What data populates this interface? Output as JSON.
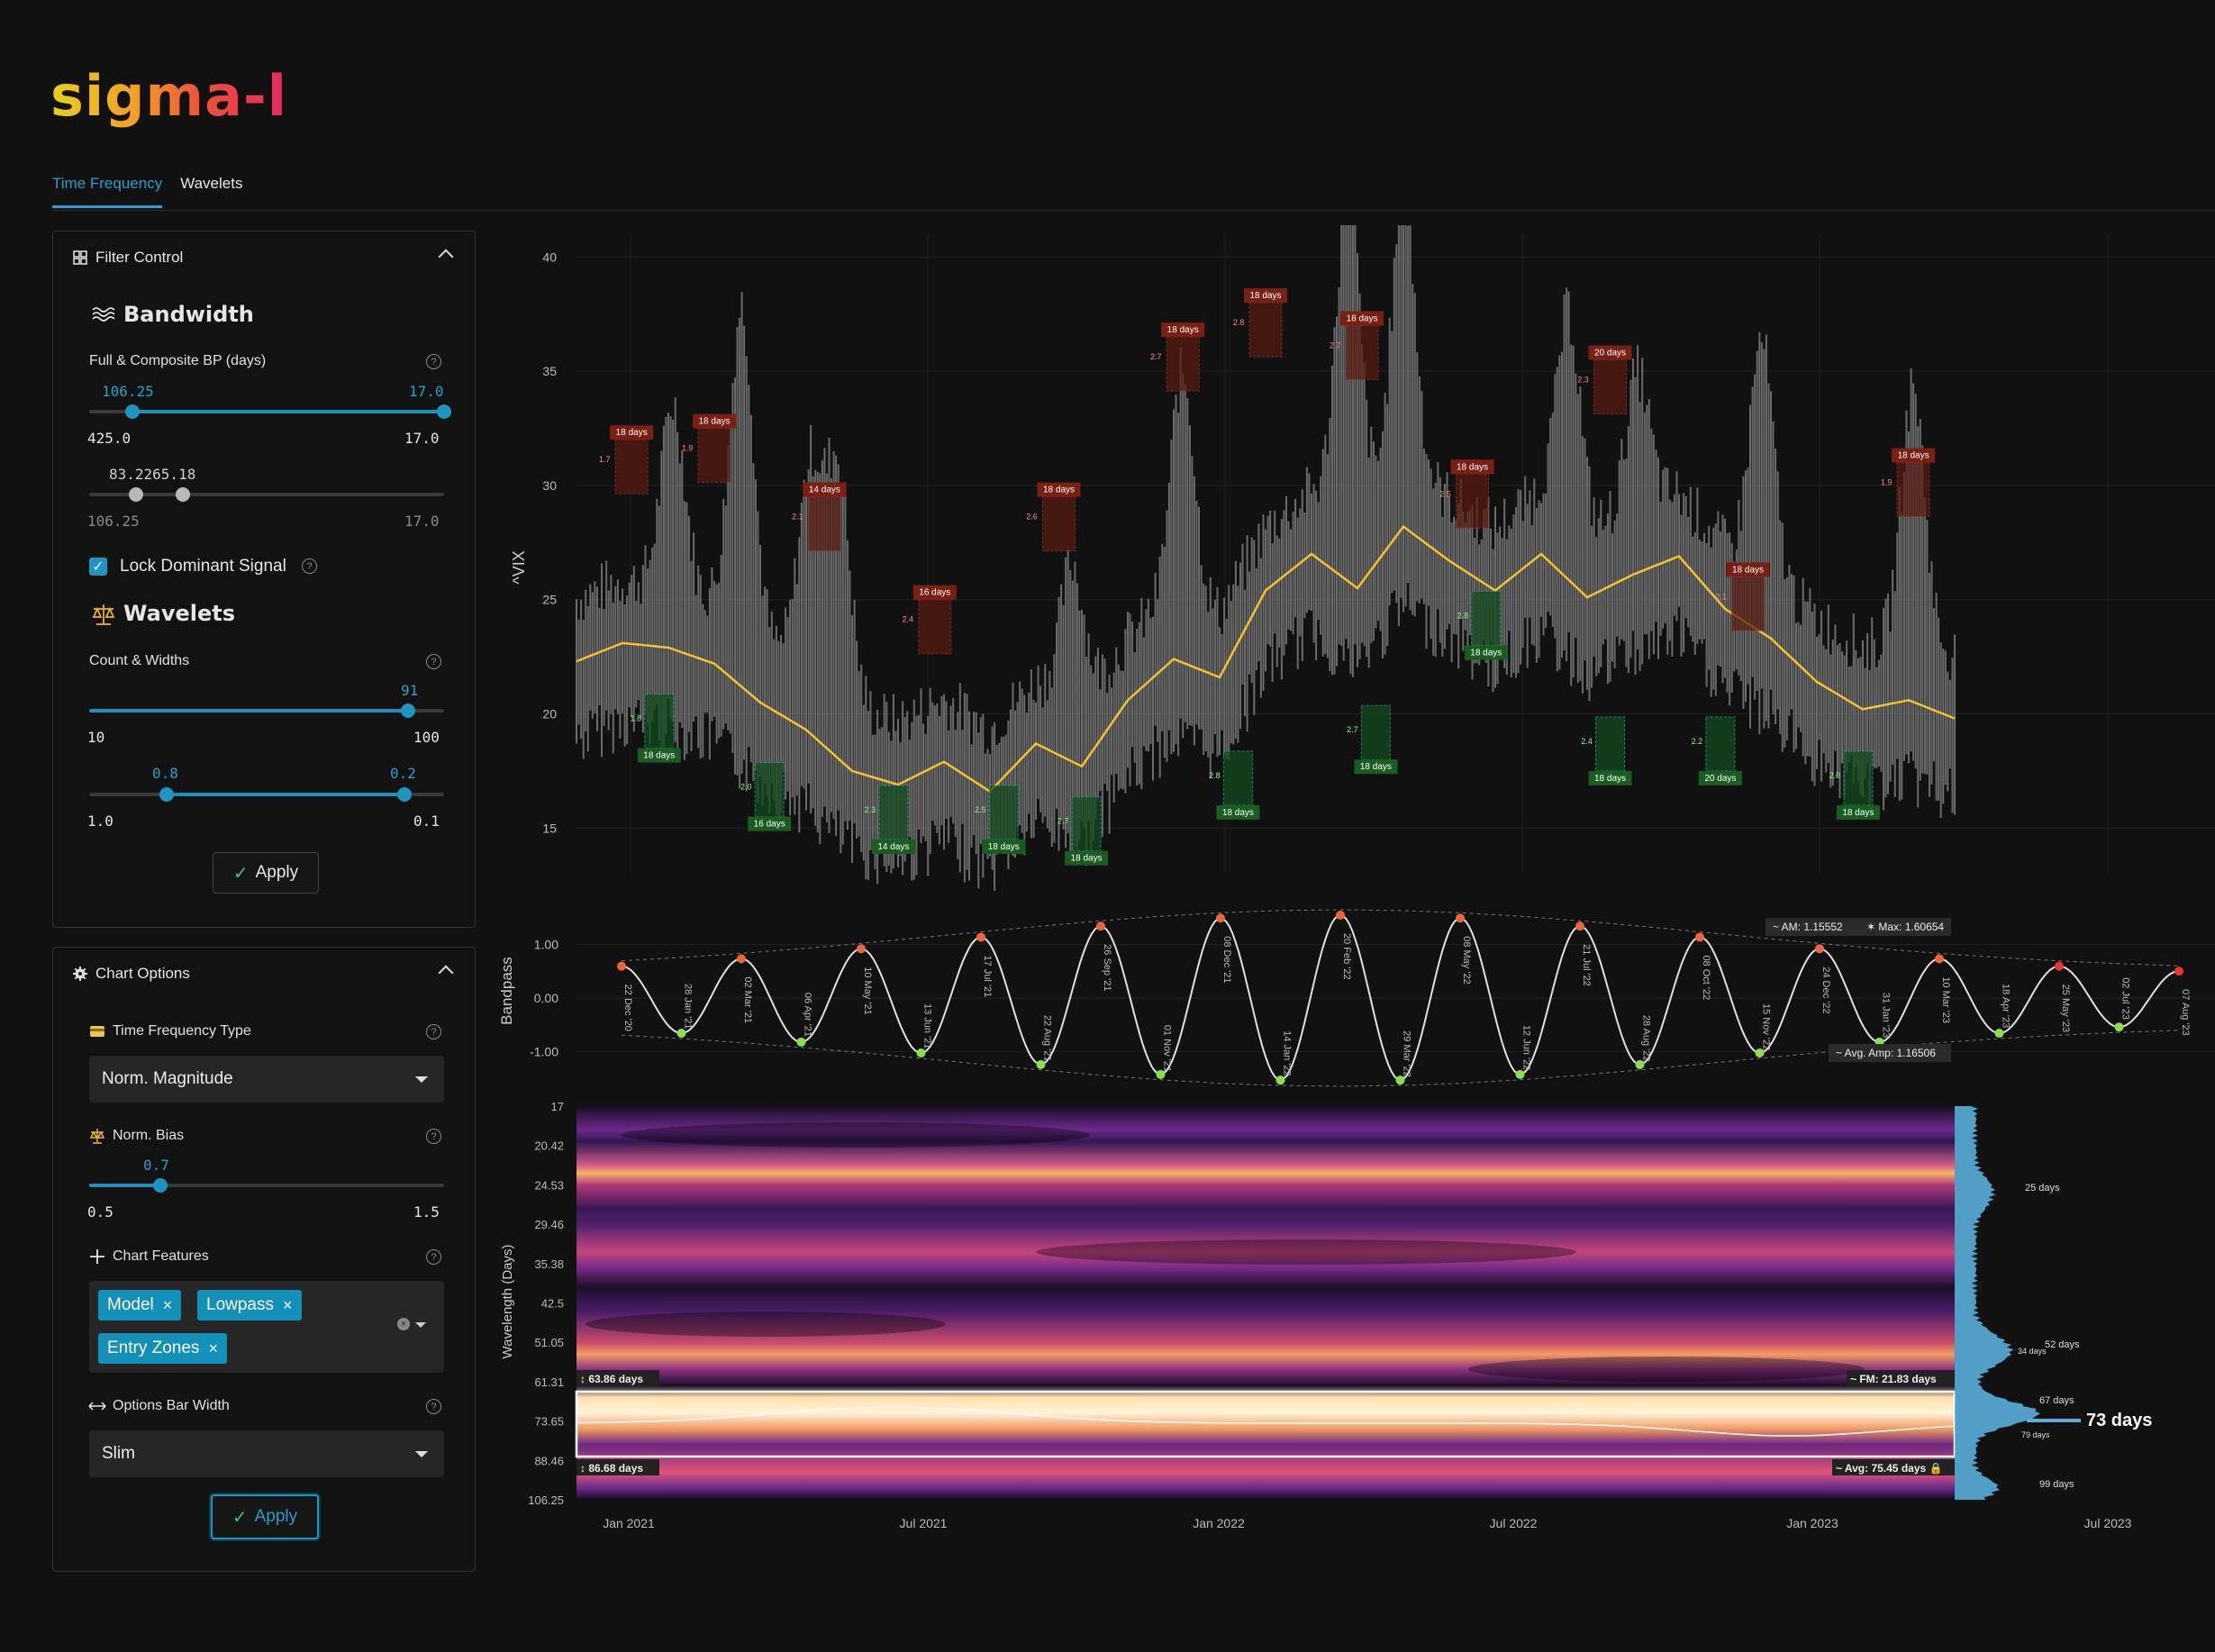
{
  "app": {
    "logo": "sigma-l"
  },
  "tabs": [
    {
      "label": "Time Frequency",
      "active": true
    },
    {
      "label": "Wavelets",
      "active": false
    }
  ],
  "filter_control": {
    "title": "Filter Control",
    "bandwidth_title": "Bandwidth",
    "bp_label": "Full & Composite BP (days)",
    "range1": {
      "low_value": "106.25",
      "high_value": "17.0",
      "min": "425.0",
      "max": "17.0"
    },
    "range2": {
      "value_text": "83.2265.18",
      "min": "106.25",
      "max": "17.0"
    },
    "lock_label": "Lock Dominant Signal",
    "lock_checked": true,
    "wavelets_title": "Wavelets",
    "count_label": "Count & Widths",
    "count": {
      "value": "91",
      "min": "10",
      "max": "100"
    },
    "widths": {
      "low_value": "0.8",
      "high_value": "0.2",
      "min": "1.0",
      "max": "0.1"
    },
    "apply_label": "Apply"
  },
  "chart_options": {
    "title": "Chart Options",
    "tf_type_label": "Time Frequency Type",
    "tf_type_value": "Norm. Magnitude",
    "bias_label": "Norm. Bias",
    "bias": {
      "value": "0.7",
      "min": "0.5",
      "max": "1.5"
    },
    "features_label": "Chart Features",
    "features": [
      "Model",
      "Lowpass",
      "Entry Zones"
    ],
    "bar_width_label": "Options Bar Width",
    "bar_width_value": "Slim",
    "apply_label": "Apply"
  },
  "chart_data": [
    {
      "type": "line",
      "title": "",
      "ylabel": "^VIX",
      "ylim": [
        13,
        41
      ],
      "yticks": [
        "15",
        "20",
        "25",
        "30",
        "35",
        "40"
      ],
      "series": [
        {
          "values": [
            22.3,
            23.1,
            22.9,
            22.2,
            20.5,
            19.3,
            17.5,
            16.9,
            17.9,
            16.6,
            18.7,
            17.7,
            20.6,
            22.4,
            21.6,
            25.4,
            27.0,
            25.5,
            28.2,
            26.7,
            25.4,
            27.0,
            25.1,
            26.1,
            26.9,
            24.6,
            23.3,
            21.4,
            20.2,
            20.6,
            19.8
          ]
        }
      ],
      "entry_zones_high": [
        {
          "label": "18 days",
          "tag": "1.7"
        },
        {
          "label": "18 days",
          "tag": "1.9"
        },
        {
          "label": "14 days",
          "tag": "2.1"
        },
        {
          "label": "16 days",
          "tag": "2.4"
        },
        {
          "label": "18 days",
          "tag": "2.6"
        },
        {
          "label": "18 days",
          "tag": "2.7"
        },
        {
          "label": "18 days",
          "tag": "2.8"
        },
        {
          "label": "18 days",
          "tag": "2.7"
        },
        {
          "label": "18 days",
          "tag": "2.5"
        },
        {
          "label": "20 days",
          "tag": "2.3"
        },
        {
          "label": "18 days",
          "tag": "2.1"
        },
        {
          "label": "18 days",
          "tag": "1.9"
        }
      ],
      "entry_zones_low": [
        {
          "label": "18 days",
          "tag": "1.8"
        },
        {
          "label": "16 days",
          "tag": "2.0"
        },
        {
          "label": "14 days",
          "tag": "2.3"
        },
        {
          "label": "18 days",
          "tag": "2.5"
        },
        {
          "label": "18 days",
          "tag": "2.7"
        },
        {
          "label": "18 days",
          "tag": "2.8"
        },
        {
          "label": "18 days",
          "tag": "2.7"
        },
        {
          "label": "18 days",
          "tag": "2.8"
        },
        {
          "label": "18 days",
          "tag": "2.4"
        },
        {
          "label": "20 days",
          "tag": "2.2"
        },
        {
          "label": "18 days",
          "tag": "2.0"
        }
      ]
    },
    {
      "type": "line",
      "ylabel": "Bandpass",
      "ylim": [
        -1.55,
        1.65
      ],
      "yticks": [
        "1.00",
        "0.00",
        "-1.00"
      ],
      "extrema_dates": [
        "22 Dec '20",
        "28 Jan '21",
        "02 Mar '21",
        "06 Apr '21",
        "10 May '21",
        "13 Jun '21",
        "17 Jul '21",
        "22 Aug '21",
        "26 Sep '21",
        "01 Nov '21",
        "08 Dec '21",
        "14 Jan '22",
        "20 Feb '22",
        "29 Mar '22",
        "08 May '22",
        "12 Jun '22",
        "21 Jul '22",
        "28 Aug '22",
        "08 Oct '22",
        "15 Nov '22",
        "24 Dec '22",
        "31 Jan '23",
        "10 Mar '23",
        "18 Apr '23",
        "25 May '23",
        "02 Jul '23",
        "07 Aug '23"
      ],
      "annotations": {
        "am": "AM: 1.15552",
        "max": "Max: 1.60654",
        "avg_amp": "Avg. Amp: 1.16506"
      }
    },
    {
      "type": "heatmap",
      "ylabel": "Wavelength (Days)",
      "yticks": [
        "17",
        "20.42",
        "24.53",
        "29.46",
        "35.38",
        "42.5",
        "51.05",
        "61.31",
        "73.65",
        "88.46",
        "106.25"
      ],
      "xticks": [
        "Jan 2021",
        "Jul 2021",
        "Jan 2022",
        "Jul 2022",
        "Jan 2023",
        "Jul 2023"
      ],
      "band_labels": {
        "top_left": "63.86 days",
        "top_right": "FM: 21.83 days",
        "bottom_left": "86.68 days",
        "bottom_right": "Avg: 75.45 days"
      },
      "histogram_labels": [
        "25 days",
        "52 days",
        "34 days",
        "67 days",
        "79 days",
        "99 days"
      ],
      "dominant": "73 days"
    }
  ]
}
